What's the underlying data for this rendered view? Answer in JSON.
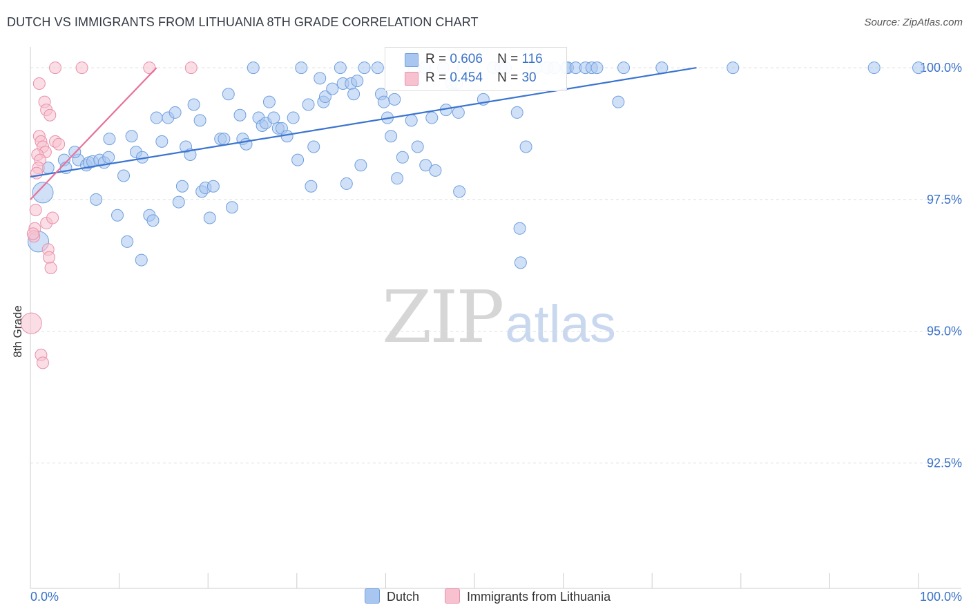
{
  "title": "DUTCH VS IMMIGRANTS FROM LITHUANIA 8TH GRADE CORRELATION CHART",
  "source": "Source: ZipAtlas.com",
  "watermark": {
    "zip": "ZIP",
    "atlas": "atlas"
  },
  "legend_stats": [
    {
      "r_label": "R =",
      "r_value": "0.606",
      "n_label": "N =",
      "n_value": "116",
      "color": "#a9c6f0",
      "border": "#6f9fde"
    },
    {
      "r_label": "R =",
      "r_value": "0.454",
      "n_label": "N =",
      "n_value": "30",
      "color": "#f7c1d0",
      "border": "#e890aa"
    }
  ],
  "chart_data": {
    "type": "scatter",
    "title": "DUTCH VS IMMIGRANTS FROM LITHUANIA 8TH GRADE CORRELATION CHART",
    "xlabel": "",
    "ylabel": "8th Grade",
    "xlim": [
      0,
      100
    ],
    "ylim": [
      90.25,
      100.25
    ],
    "x_tick_labels": [
      "0.0%",
      "100.0%"
    ],
    "y_ticks": [
      92.5,
      95.0,
      97.5,
      100.0
    ],
    "y_tick_labels": [
      "92.5%",
      "95.0%",
      "97.5%",
      "100.0%"
    ],
    "grid": true,
    "legend_position": "bottom-center",
    "series": [
      {
        "name": "Dutch",
        "color": "#a9c6f0",
        "stroke": "#6f9fde",
        "line_color": "#3a74d0",
        "trend": [
          [
            0,
            97.93
          ],
          [
            75,
            100.0
          ]
        ],
        "points": [
          [
            1.4,
            97.63,
            "L"
          ],
          [
            0.9,
            96.7,
            "L"
          ],
          [
            2.0,
            98.1
          ],
          [
            3.8,
            98.25
          ],
          [
            4.0,
            98.1
          ],
          [
            5.4,
            98.25
          ],
          [
            5.0,
            98.4
          ],
          [
            6.3,
            98.15
          ],
          [
            6.6,
            98.2
          ],
          [
            7.0,
            98.22
          ],
          [
            7.8,
            98.25
          ],
          [
            8.3,
            98.2
          ],
          [
            8.8,
            98.3
          ],
          [
            7.4,
            97.5
          ],
          [
            8.9,
            98.65
          ],
          [
            10.5,
            97.95
          ],
          [
            9.8,
            97.2
          ],
          [
            10.9,
            96.7
          ],
          [
            11.4,
            98.7
          ],
          [
            12.5,
            96.35
          ],
          [
            11.9,
            98.4
          ],
          [
            12.6,
            98.3
          ],
          [
            13.4,
            97.2
          ],
          [
            13.8,
            97.1
          ],
          [
            14.2,
            99.05
          ],
          [
            14.8,
            98.6
          ],
          [
            15.5,
            99.05
          ],
          [
            16.3,
            99.15
          ],
          [
            16.7,
            97.45
          ],
          [
            17.1,
            97.75
          ],
          [
            17.5,
            98.5
          ],
          [
            18.0,
            98.35
          ],
          [
            18.4,
            99.3
          ],
          [
            19.1,
            99.0
          ],
          [
            19.3,
            97.65
          ],
          [
            19.7,
            97.72
          ],
          [
            20.2,
            97.15
          ],
          [
            20.6,
            97.75
          ],
          [
            21.4,
            98.65
          ],
          [
            21.8,
            98.65
          ],
          [
            22.7,
            97.35
          ],
          [
            22.3,
            99.5
          ],
          [
            23.6,
            99.1
          ],
          [
            23.9,
            98.65
          ],
          [
            24.3,
            98.55
          ],
          [
            25.1,
            100.0
          ],
          [
            25.7,
            99.05
          ],
          [
            26.1,
            98.9
          ],
          [
            26.5,
            98.95
          ],
          [
            26.9,
            99.35
          ],
          [
            27.4,
            99.05
          ],
          [
            27.9,
            98.85
          ],
          [
            28.3,
            98.85
          ],
          [
            28.9,
            98.7
          ],
          [
            29.6,
            99.05
          ],
          [
            30.1,
            98.25
          ],
          [
            31.3,
            99.3
          ],
          [
            30.5,
            100.0
          ],
          [
            31.6,
            97.75
          ],
          [
            31.9,
            98.5
          ],
          [
            32.6,
            99.8
          ],
          [
            33.0,
            99.35
          ],
          [
            33.2,
            99.45
          ],
          [
            34.0,
            99.6
          ],
          [
            34.9,
            100.0
          ],
          [
            35.2,
            99.7
          ],
          [
            35.6,
            97.8
          ],
          [
            36.1,
            99.7
          ],
          [
            36.4,
            99.5
          ],
          [
            36.8,
            99.75
          ],
          [
            37.2,
            98.15
          ],
          [
            37.6,
            100.0
          ],
          [
            39.1,
            100.0
          ],
          [
            39.5,
            99.5
          ],
          [
            39.8,
            99.35
          ],
          [
            40.2,
            99.05
          ],
          [
            40.6,
            98.7
          ],
          [
            41.0,
            99.4
          ],
          [
            41.3,
            97.9
          ],
          [
            41.9,
            98.3
          ],
          [
            42.9,
            99.0
          ],
          [
            43.2,
            99.95
          ],
          [
            43.6,
            98.5
          ],
          [
            44.4,
            100.0
          ],
          [
            44.5,
            98.15
          ],
          [
            45.2,
            99.05
          ],
          [
            45.6,
            98.05
          ],
          [
            46.5,
            100.0
          ],
          [
            46.8,
            99.2
          ],
          [
            47.4,
            99.7
          ],
          [
            48.0,
            99.7
          ],
          [
            48.7,
            100.0
          ],
          [
            48.2,
            99.15
          ],
          [
            48.3,
            97.65
          ],
          [
            51.0,
            99.4
          ],
          [
            52.1,
            100.0
          ],
          [
            53.0,
            100.0
          ],
          [
            53.5,
            100.0
          ],
          [
            54.8,
            99.15
          ],
          [
            55.8,
            98.5
          ],
          [
            56.9,
            100.0
          ],
          [
            58.2,
            100.0
          ],
          [
            59.0,
            100.0
          ],
          [
            60.3,
            100.0
          ],
          [
            60.5,
            100.0
          ],
          [
            61.4,
            100.0
          ],
          [
            62.5,
            100.0
          ],
          [
            63.2,
            100.0
          ],
          [
            63.8,
            100.0
          ],
          [
            66.2,
            99.35
          ],
          [
            66.8,
            100.0
          ],
          [
            71.1,
            100.0
          ],
          [
            79.1,
            100.0
          ],
          [
            95.0,
            100.0
          ],
          [
            100.0,
            100.0
          ],
          [
            55.2,
            96.3
          ],
          [
            55.1,
            96.95
          ]
        ]
      },
      {
        "name": "Immigrants from Lithuania",
        "color": "#f7c1d0",
        "stroke": "#e890aa",
        "line_color": "#e8709a",
        "trend": [
          [
            0,
            97.5
          ],
          [
            14.2,
            100.0
          ]
        ],
        "points": [
          [
            2.8,
            100.0
          ],
          [
            5.8,
            100.0
          ],
          [
            13.4,
            100.0
          ],
          [
            18.1,
            100.0
          ],
          [
            1.0,
            99.7
          ],
          [
            1.6,
            99.35
          ],
          [
            1.8,
            99.2
          ],
          [
            2.2,
            99.1
          ],
          [
            1.0,
            98.7
          ],
          [
            1.2,
            98.6
          ],
          [
            1.4,
            98.5
          ],
          [
            1.7,
            98.4
          ],
          [
            0.8,
            98.35
          ],
          [
            1.1,
            98.25
          ],
          [
            0.9,
            98.1
          ],
          [
            0.7,
            98.0
          ],
          [
            2.8,
            98.6
          ],
          [
            3.2,
            98.55
          ],
          [
            0.6,
            97.3
          ],
          [
            1.8,
            97.05
          ],
          [
            2.5,
            97.15
          ],
          [
            0.5,
            96.95
          ],
          [
            0.4,
            96.8
          ],
          [
            2.0,
            96.55
          ],
          [
            2.1,
            96.4
          ],
          [
            2.3,
            96.2
          ],
          [
            0.1,
            95.15,
            "L"
          ],
          [
            1.2,
            94.55
          ],
          [
            1.4,
            94.4
          ],
          [
            0.3,
            96.85
          ]
        ]
      }
    ]
  },
  "bottom_legend": [
    {
      "label": "Dutch",
      "color": "#a9c6f0",
      "border": "#6f9fde"
    },
    {
      "label": "Immigrants from Lithuania",
      "color": "#f7c1d0",
      "border": "#e890aa"
    }
  ]
}
